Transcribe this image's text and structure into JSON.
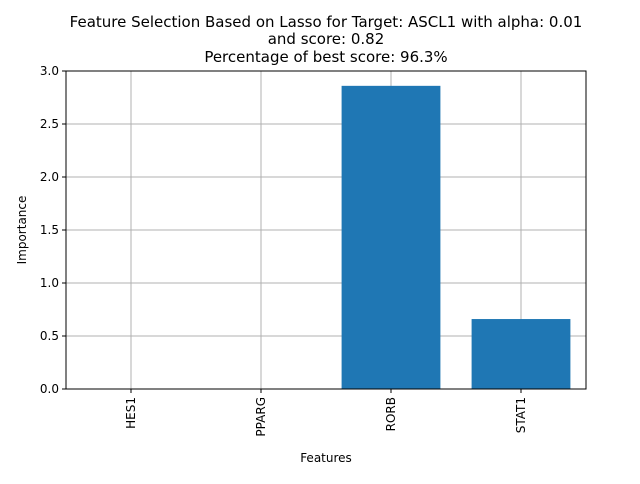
{
  "chart_data": {
    "type": "bar",
    "title_lines": [
      "Feature Selection Based on Lasso for Target: ASCL1 with alpha: 0.01",
      "and score: 0.82",
      "Percentage of best score: 96.3%"
    ],
    "xlabel": "Features",
    "ylabel": "Importance",
    "categories": [
      "HES1",
      "PPARG",
      "RORB",
      "STAT1"
    ],
    "values": [
      0.0,
      0.0,
      2.86,
      0.66
    ],
    "ylim": [
      0,
      3.0
    ],
    "yticks": [
      "0.0",
      "0.5",
      "1.0",
      "1.5",
      "2.0",
      "2.5",
      "3.0"
    ],
    "grid": true,
    "bar_color": "#1f77b4"
  }
}
